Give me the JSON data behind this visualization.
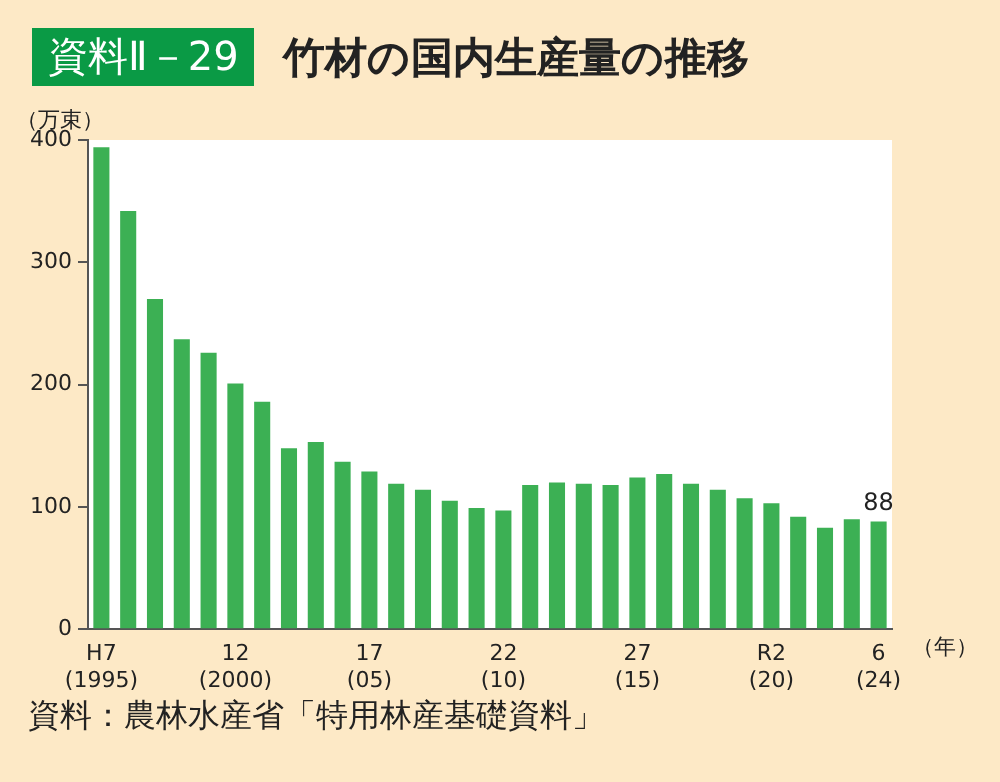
{
  "chart_data": {
    "type": "bar",
    "title": "竹材の国内生産量の推移",
    "subtitle": "資料Ⅱ－29",
    "ylabel": "（万束）",
    "xlabel": "（年）",
    "categories": [
      "H7\n(1995)",
      null,
      null,
      null,
      null,
      "12\n(2000)",
      null,
      null,
      null,
      null,
      "17\n(05)",
      null,
      null,
      null,
      null,
      "22\n(10)",
      null,
      null,
      null,
      null,
      "27\n(15)",
      null,
      null,
      null,
      null,
      "R2\n(20)",
      null,
      null,
      null,
      "6\n(24)"
    ],
    "values": [
      394,
      342,
      270,
      237,
      226,
      201,
      186,
      148,
      153,
      137,
      129,
      119,
      114,
      105,
      99,
      97,
      118,
      120,
      119,
      118,
      124,
      127,
      119,
      114,
      107,
      103,
      92,
      83,
      90,
      88
    ],
    "value_labels": [
      null,
      null,
      null,
      null,
      null,
      null,
      null,
      null,
      null,
      null,
      null,
      null,
      null,
      null,
      null,
      null,
      null,
      null,
      null,
      null,
      null,
      null,
      null,
      null,
      null,
      null,
      null,
      null,
      null,
      "88"
    ],
    "color": "#3cb054",
    "ylim": [
      0,
      400
    ],
    "yticks": [
      0,
      100,
      200,
      300,
      400
    ],
    "grid": false,
    "legend": false,
    "annotations": [
      "資料：農林水産省「特用林産基礎資料」"
    ]
  }
}
